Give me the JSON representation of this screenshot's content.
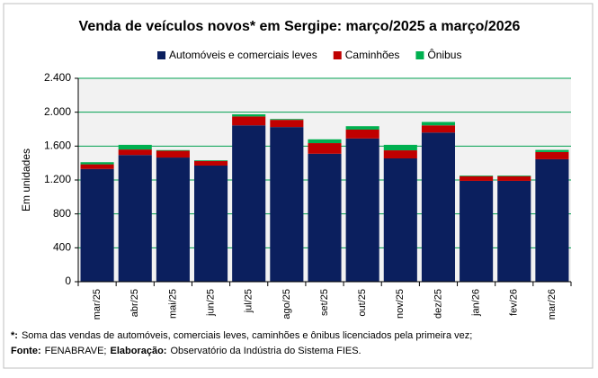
{
  "chart_data": {
    "type": "stacked_bar",
    "title": "Venda de veículos novos* em Sergipe: março/2025 a março/2026",
    "y_label": "Em unidades",
    "categories": [
      "mar/25",
      "abr/25",
      "mai/25",
      "jun/25",
      "jul/25",
      "ago/25",
      "set/25",
      "out/25",
      "nov/25",
      "dez/25",
      "jan/26",
      "fev/26",
      "mar/26"
    ],
    "series": [
      {
        "name": "Automóveis e comerciais leves",
        "color": "#0b1f5e",
        "values": [
          1330,
          1495,
          1465,
          1370,
          1845,
          1825,
          1510,
          1690,
          1455,
          1760,
          1190,
          1190,
          1445
        ]
      },
      {
        "name": "Caminhões",
        "color": "#c00000",
        "values": [
          55,
          65,
          80,
          55,
          105,
          85,
          125,
          105,
          95,
          85,
          55,
          55,
          85
        ]
      },
      {
        "name": "Ônibus",
        "color": "#00b050",
        "values": [
          25,
          55,
          8,
          8,
          25,
          10,
          45,
          40,
          65,
          40,
          8,
          8,
          25
        ]
      }
    ],
    "ylim": [
      0,
      2400
    ],
    "yticks": [
      0,
      400,
      800,
      {
        "value": 1200,
        "label": "1.200"
      },
      {
        "value": 1600,
        "label": "1.600"
      },
      {
        "value": 2000,
        "label": "2.000"
      },
      {
        "value": 2400,
        "label": "2.400"
      }
    ],
    "grid": true,
    "footnotes": [
      [
        "*:",
        "Soma das vendas de automóveis, comerciais leves, caminhões e ônibus licenciados pela primeira vez;"
      ],
      [
        "Fonte:",
        "FENABRAVE;",
        "Elaboração:",
        "Observatório da Indústria do Sistema FIES."
      ]
    ]
  }
}
